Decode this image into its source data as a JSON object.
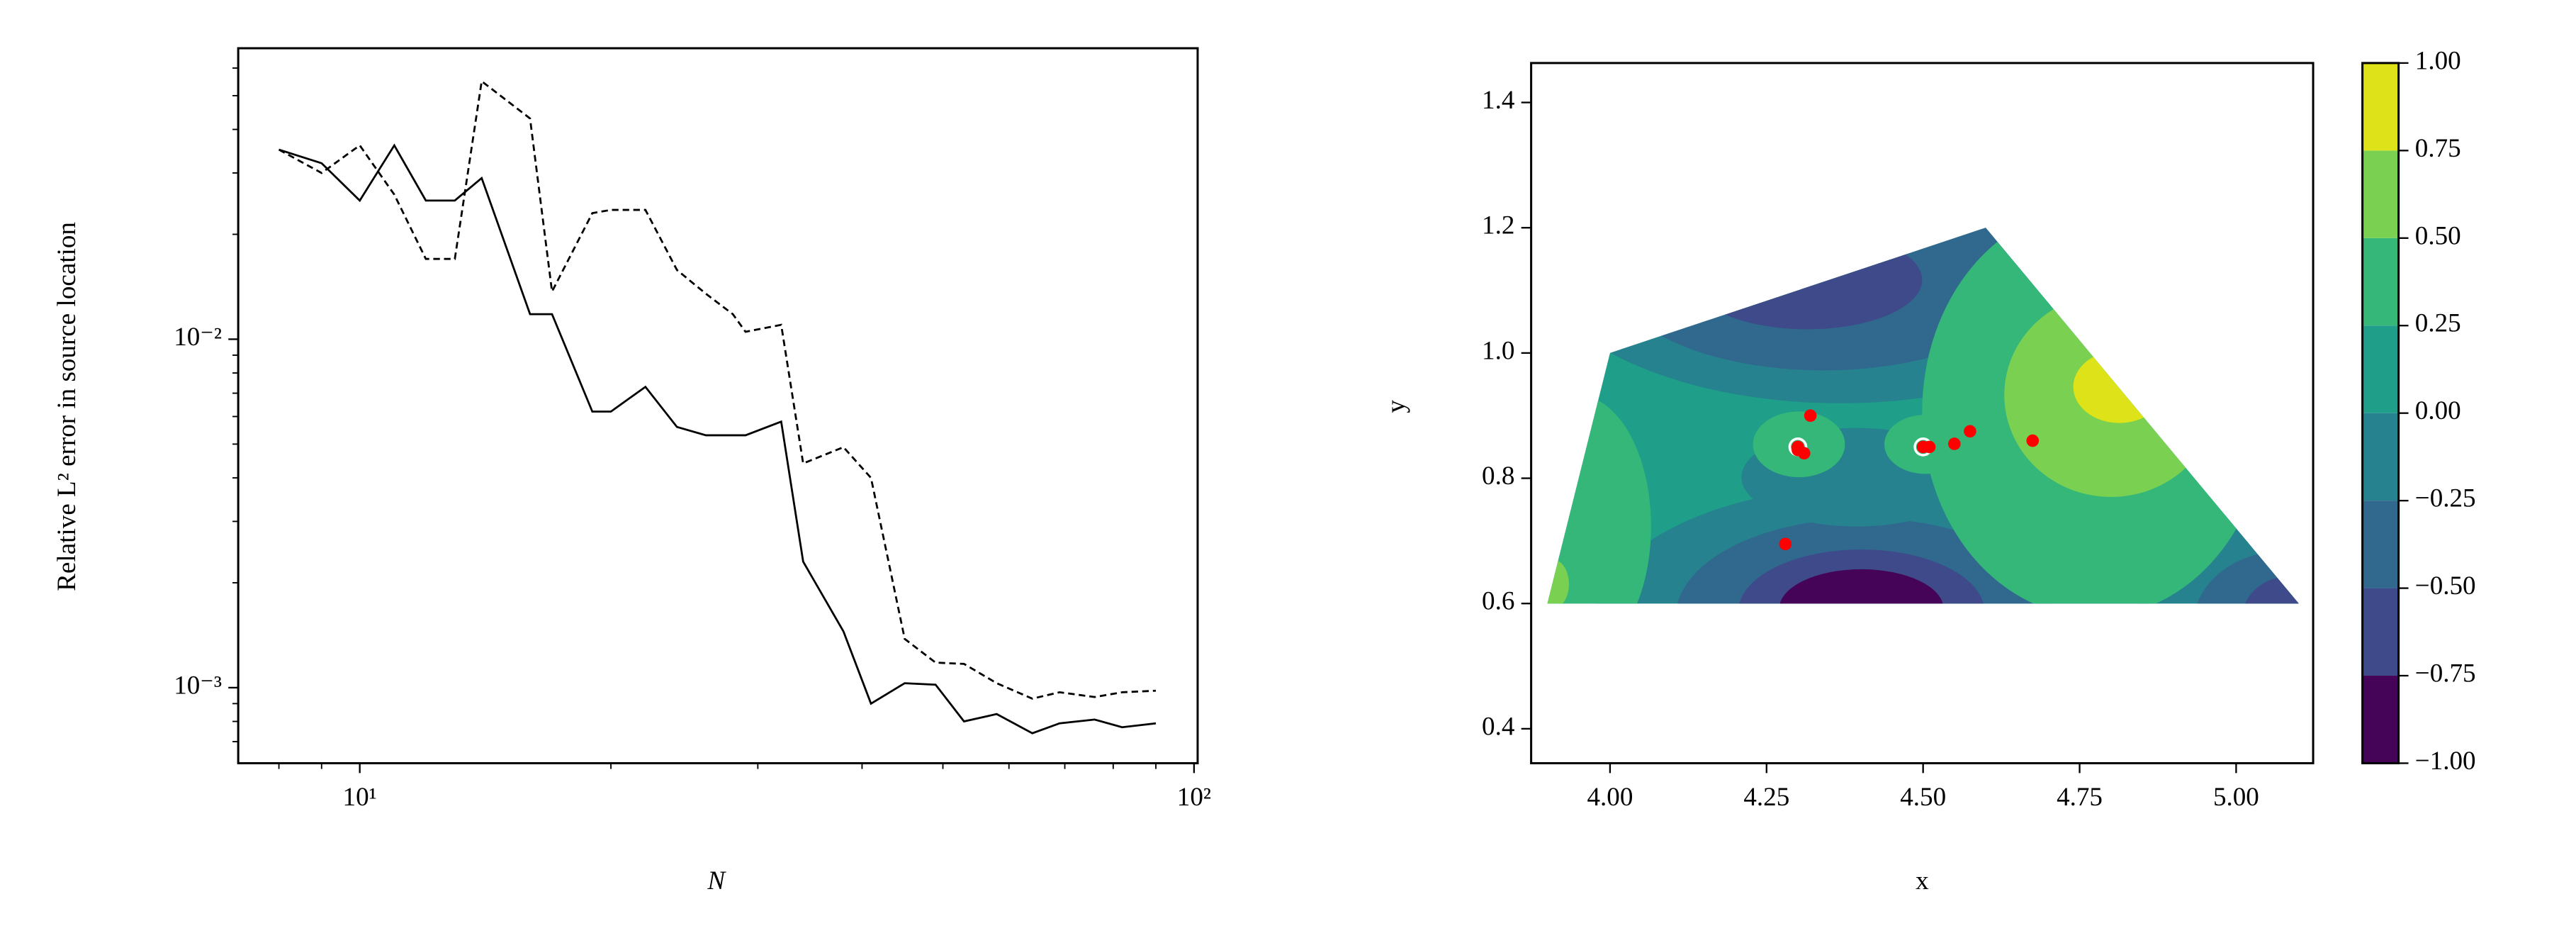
{
  "chart_data": [
    {
      "type": "line",
      "xlabel": "N",
      "ylabel": "Relative L² error in source location",
      "xlog": true,
      "ylog": true,
      "xlim": [
        7.15,
        101
      ],
      "ylim": [
        0.000607,
        0.0684
      ],
      "xticks": [
        {
          "value": 10,
          "label": "10¹"
        },
        {
          "value": 100,
          "label": "10²"
        }
      ],
      "yticks": [
        {
          "value": 0.001,
          "label": "10⁻³"
        },
        {
          "value": 0.01,
          "label": "10⁻²"
        }
      ],
      "xminorticks": [
        8,
        9,
        20,
        30,
        40,
        50,
        60,
        70,
        80,
        90
      ],
      "yminorticks": [
        0.0007,
        0.0008,
        0.0009,
        0.002,
        0.003,
        0.004,
        0.005,
        0.006,
        0.007,
        0.008,
        0.009,
        0.02,
        0.03,
        0.04,
        0.05,
        0.06
      ],
      "x": [
        8,
        9,
        10,
        11,
        12,
        13,
        14,
        16,
        17,
        19,
        20,
        22,
        24,
        26,
        28,
        29,
        32,
        34,
        38,
        41,
        45,
        49,
        53,
        58,
        64,
        69,
        76,
        82,
        90
      ],
      "series": [
        {
          "color": "#000000",
          "dash": "solid",
          "values": [
            0.035,
            0.032,
            0.025,
            0.036,
            0.025,
            0.025,
            0.029,
            0.0118,
            0.0118,
            0.0062,
            0.0062,
            0.0073,
            0.0056,
            0.0053,
            0.0053,
            0.0053,
            0.0058,
            0.0023,
            0.00145,
            0.0009,
            0.00103,
            0.00102,
            0.0008,
            0.00084,
            0.00074,
            0.00079,
            0.00081,
            0.00077,
            0.00079
          ]
        },
        {
          "color": "#000000",
          "dash": "dashed",
          "values": [
            0.035,
            0.03,
            0.036,
            0.026,
            0.017,
            0.017,
            0.055,
            0.043,
            0.0137,
            0.023,
            0.0235,
            0.0235,
            0.0158,
            0.0135,
            0.0118,
            0.0105,
            0.011,
            0.0044,
            0.0049,
            0.004,
            0.00138,
            0.00118,
            0.00117,
            0.00103,
            0.00093,
            0.00097,
            0.00094,
            0.00097,
            0.00098
          ]
        }
      ]
    },
    {
      "type": "contour",
      "xlabel": "x",
      "ylabel": "y",
      "xlim": [
        3.874,
        5.123
      ],
      "ylim": [
        0.345,
        1.463
      ],
      "xticks": [
        {
          "value": 4,
          "label": "4.00"
        },
        4.25,
        {
          "value": 4.5,
          "label": "4.50"
        },
        4.75,
        {
          "value": 5,
          "label": "5.00"
        }
      ],
      "yticks": [
        0.4,
        0.6,
        0.8,
        {
          "value": 1,
          "label": "1.0"
        },
        1.2,
        1.4
      ],
      "domain": {
        "x": [
          3.9,
          4.0,
          4.6,
          5.1
        ],
        "y": [
          0.6,
          1.0,
          1.2,
          0.6
        ]
      },
      "levels": [
        -1,
        -0.75,
        -0.5,
        -0.25,
        0,
        0.25,
        0.5,
        0.75,
        1
      ],
      "colors": [
        "#450457",
        "#3e4a89",
        "#31688e",
        "#26828e",
        "#1f9e89",
        "#35b779",
        "#7ad151",
        "#dde318"
      ],
      "cbticks": [
        {
          "value": 1,
          "label": "1.00"
        },
        0.75,
        {
          "value": 0.5,
          "label": "0.50"
        },
        0.25,
        {
          "value": 0,
          "label": "0.00"
        },
        {
          "value": -0.25,
          "label": "−0.25"
        },
        {
          "value": -0.5,
          "label": "−0.50"
        },
        {
          "value": -0.75,
          "label": "−0.75"
        },
        {
          "value": -1,
          "label": "−1.00"
        }
      ],
      "points": {
        "color": "#ff0000",
        "x": [
          4.32,
          4.3,
          4.31,
          4.3,
          4.5,
          4.51,
          4.55,
          4.575,
          4.675,
          4.28
        ],
        "y": [
          0.9,
          0.85,
          0.84,
          0.845,
          0.85,
          0.85,
          0.855,
          0.875,
          0.86,
          0.695
        ]
      },
      "sources": {
        "color": "#ffffff",
        "x": [
          4.3,
          4.5
        ],
        "y": [
          0.85,
          0.85
        ]
      }
    }
  ]
}
